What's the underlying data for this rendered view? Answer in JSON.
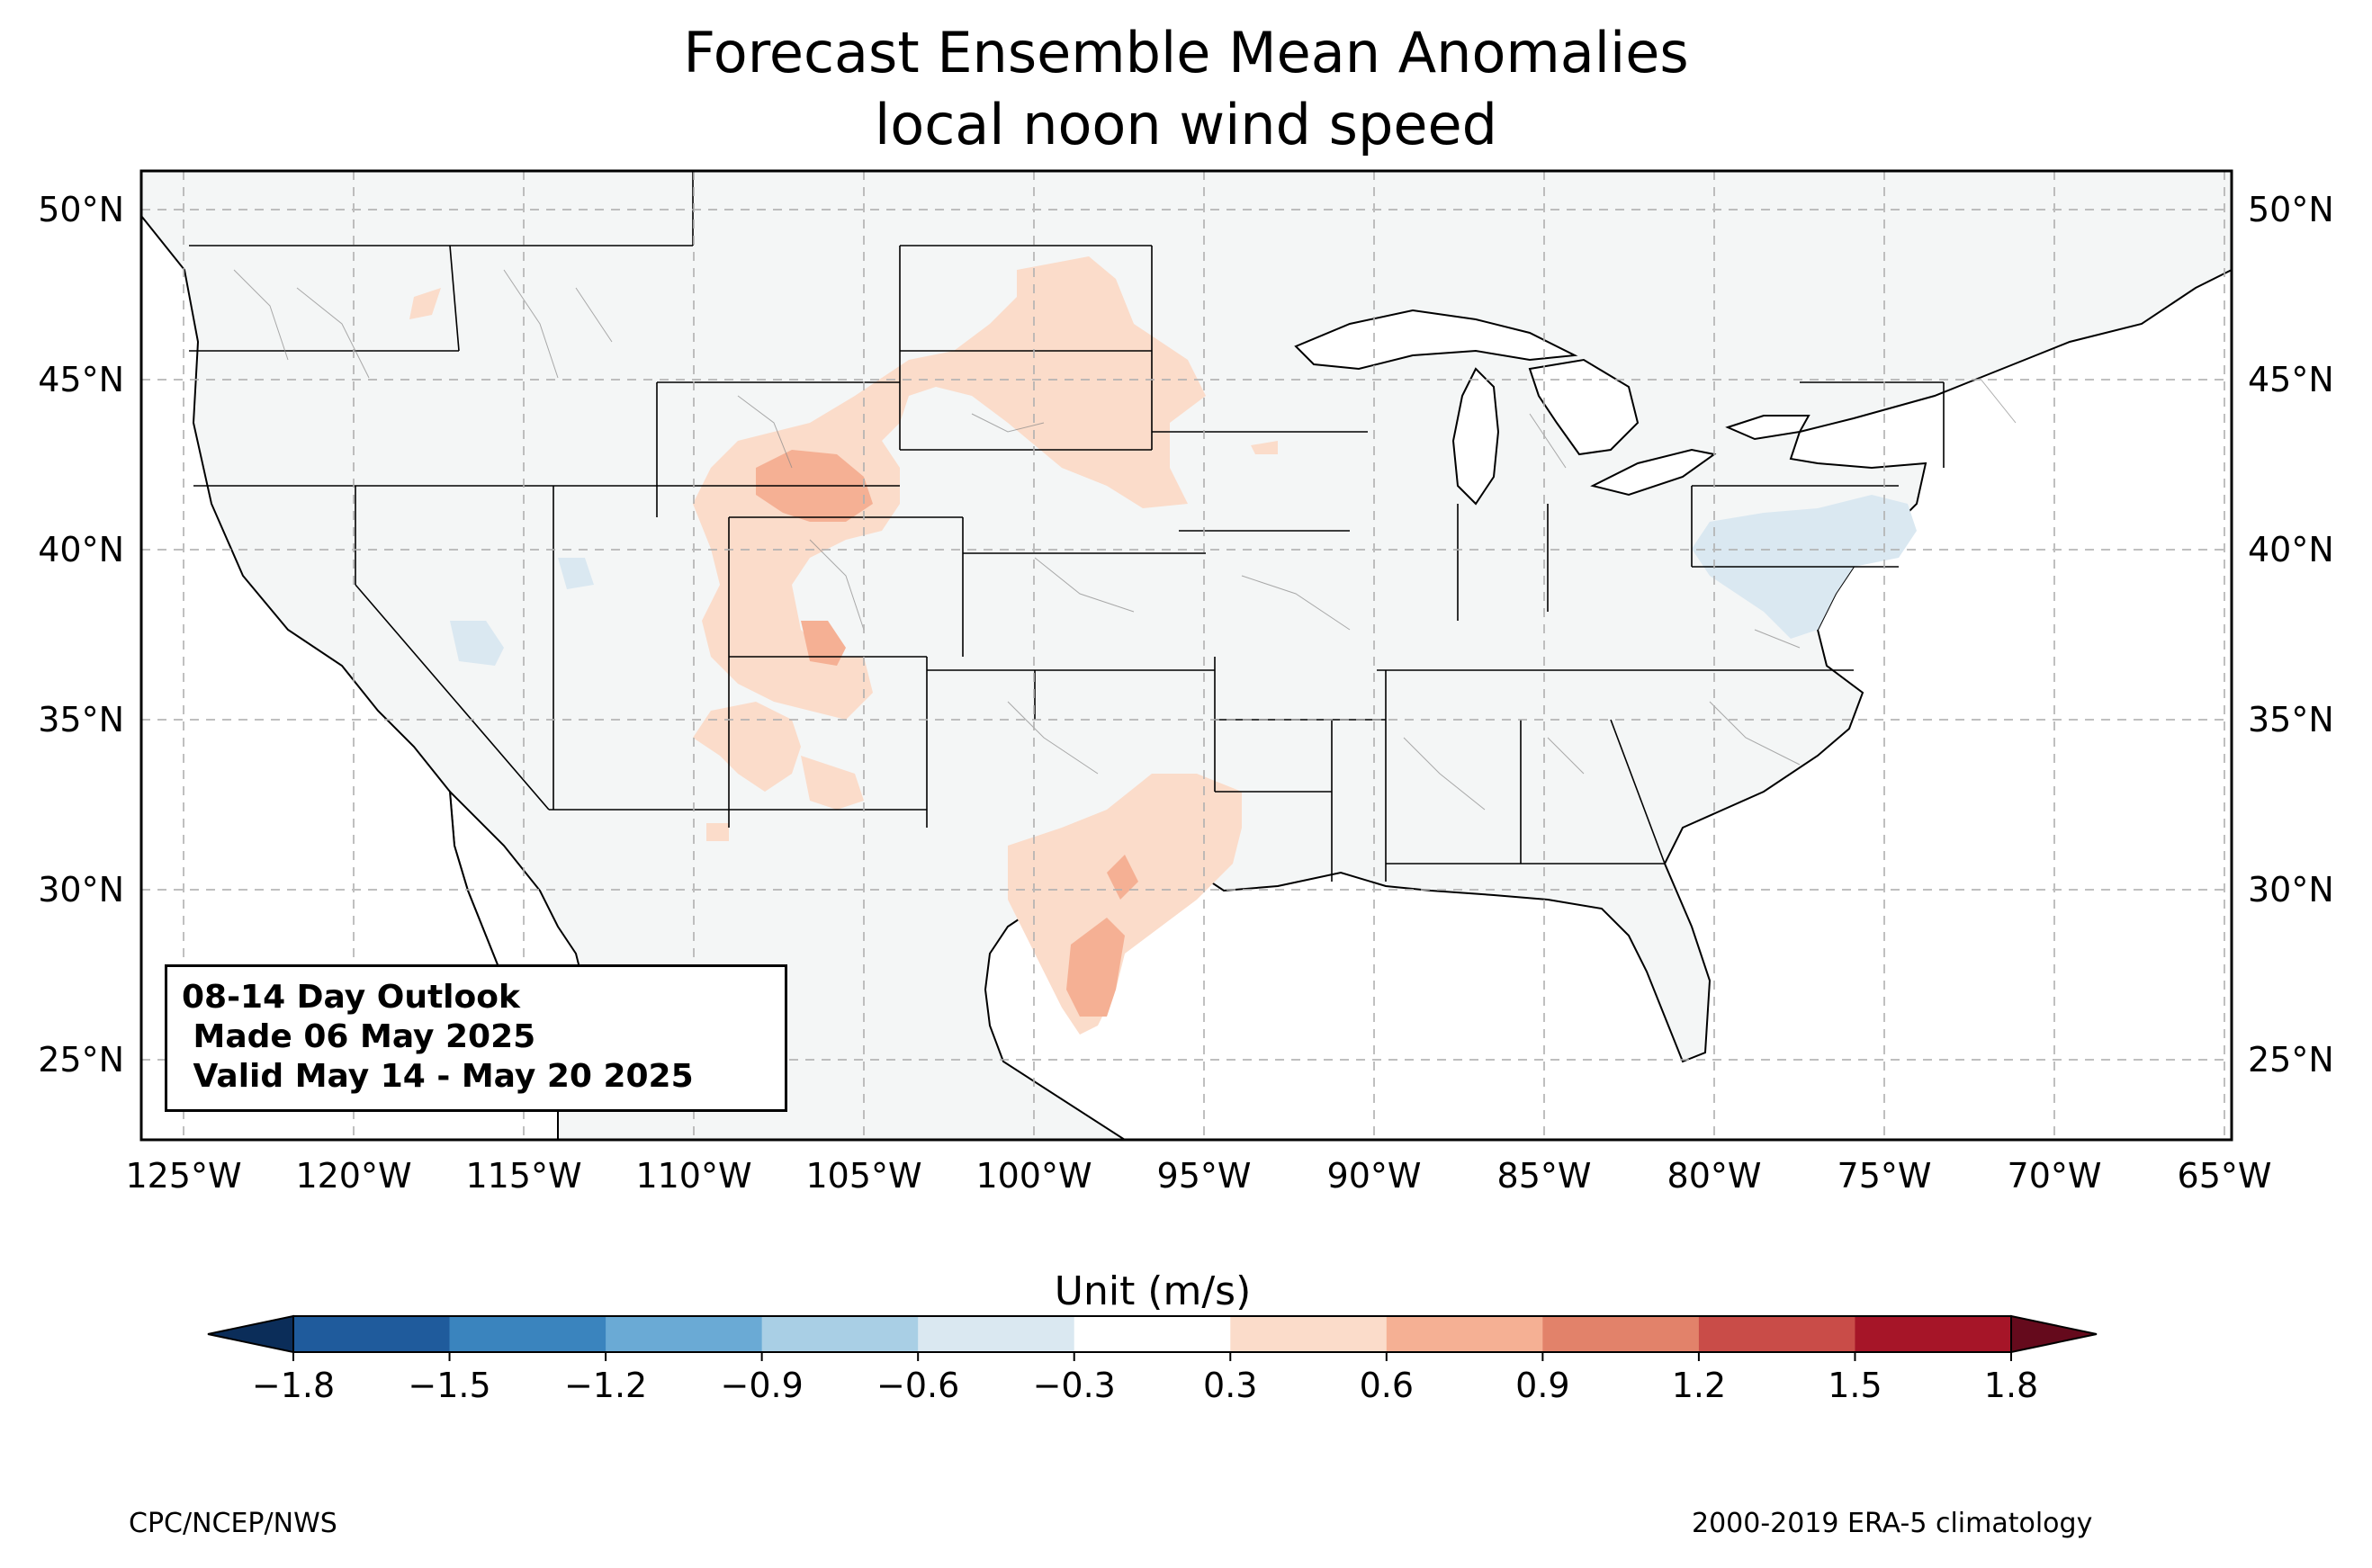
{
  "title": {
    "line1": "Forecast Ensemble Mean Anomalies",
    "line2": "local noon wind speed"
  },
  "map": {
    "lon_labels": [
      "125°W",
      "120°W",
      "115°W",
      "110°W",
      "105°W",
      "100°W",
      "95°W",
      "90°W",
      "85°W",
      "80°W",
      "75°W",
      "70°W",
      "65°W"
    ],
    "lat_labels": [
      "50°N",
      "45°N",
      "40°N",
      "35°N",
      "30°N",
      "25°N"
    ],
    "lon_range": [
      -126.3,
      -64.9
    ],
    "lat_range": [
      22.8,
      51.2
    ],
    "land_color": "#f4f6f6",
    "ocean_color": "#ffffff",
    "grid": true
  },
  "info_box": {
    "line1": "08-14 Day Outlook",
    "line2": " Made 06 May 2025",
    "line3": " Valid May 14 - May 20 2025"
  },
  "colorbar": {
    "label": "Unit (m/s)",
    "ticks": [
      "−1.8",
      "−1.5",
      "−1.2",
      "−0.9",
      "−0.6",
      "−0.3",
      "0.3",
      "0.6",
      "0.9",
      "1.2",
      "1.5",
      "1.8"
    ],
    "colors": [
      "#1f5b9c",
      "#3a84be",
      "#6aaad5",
      "#a9cfe5",
      "#dae8f1",
      "#ffffff",
      "#fbdcca",
      "#f5b094",
      "#e2826a",
      "#c94c48",
      "#a61528"
    ],
    "extend_low_color": "#0b2d59",
    "extend_high_color": "#650a1c"
  },
  "footer": {
    "left": "CPC/NCEP/NWS",
    "right": "2000-2019 ERA-5 climatology"
  }
}
